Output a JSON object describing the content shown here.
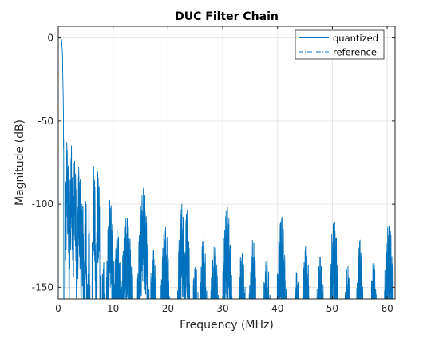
{
  "chart_data": {
    "type": "line",
    "title": "DUC Filter Chain",
    "xlabel": "Frequency (MHz)",
    "ylabel": "Magnitude (dB)",
    "xlim": [
      0,
      61.44
    ],
    "ylim": [
      -157,
      7
    ],
    "xticks": [
      0,
      10,
      20,
      30,
      40,
      50,
      60
    ],
    "yticks": [
      0,
      -50,
      -100,
      -150
    ],
    "xtick_labels": [
      "0",
      "10",
      "20",
      "30",
      "40",
      "50",
      "60"
    ],
    "ytick_labels": [
      "0",
      "-50",
      "-100",
      "-150"
    ],
    "grid": true,
    "legend_position": "top-right",
    "series_color": "#0072BD",
    "series": [
      {
        "name": "quantized",
        "style": "solid",
        "passband": {
          "x": [
            0,
            0.2,
            0.4,
            0.6,
            0.75,
            0.9,
            1.0
          ],
          "y": [
            0,
            0,
            0,
            -1,
            -8,
            -35,
            -60
          ]
        },
        "lobes": [
          {
            "center": 1.6,
            "width": 0.9,
            "peak": -60
          },
          {
            "center": 2.4,
            "width": 0.9,
            "peak": -64
          },
          {
            "center": 3.0,
            "width": 0.8,
            "peak": -68
          },
          {
            "center": 3.8,
            "width": 1.0,
            "peak": -75
          },
          {
            "center": 4.4,
            "width": 0.6,
            "peak": -89
          },
          {
            "center": 5.0,
            "width": 0.6,
            "peak": -93
          },
          {
            "center": 5.6,
            "width": 0.5,
            "peak": -98
          },
          {
            "center": 6.5,
            "width": 0.7,
            "peak": -72
          },
          {
            "center": 7.3,
            "width": 0.8,
            "peak": -76
          },
          {
            "center": 8.2,
            "width": 0.8,
            "peak": -128
          },
          {
            "center": 9.5,
            "width": 1.6,
            "peak": -95
          },
          {
            "center": 10.8,
            "width": 1.6,
            "peak": -114
          },
          {
            "center": 12.5,
            "width": 2.4,
            "peak": -105
          },
          {
            "center": 15.5,
            "width": 2.2,
            "peak": -90
          },
          {
            "center": 17.3,
            "width": 1.5,
            "peak": -123
          },
          {
            "center": 19.5,
            "width": 2.0,
            "peak": -112
          },
          {
            "center": 22.5,
            "width": 1.6,
            "peak": -98
          },
          {
            "center": 23.5,
            "width": 1.2,
            "peak": -99
          },
          {
            "center": 25.0,
            "width": 1.8,
            "peak": -135
          },
          {
            "center": 26.5,
            "width": 1.6,
            "peak": -118
          },
          {
            "center": 28.5,
            "width": 2.0,
            "peak": -123
          },
          {
            "center": 30.8,
            "width": 2.0,
            "peak": -101
          },
          {
            "center": 33.5,
            "width": 2.0,
            "peak": -127
          },
          {
            "center": 35.5,
            "width": 1.8,
            "peak": -120
          },
          {
            "center": 38.0,
            "width": 2.0,
            "peak": -132
          },
          {
            "center": 40.7,
            "width": 2.0,
            "peak": -106
          },
          {
            "center": 43.5,
            "width": 1.6,
            "peak": -138
          },
          {
            "center": 45.2,
            "width": 1.8,
            "peak": -123
          },
          {
            "center": 47.8,
            "width": 2.0,
            "peak": -130
          },
          {
            "center": 50.3,
            "width": 2.0,
            "peak": -108
          },
          {
            "center": 52.8,
            "width": 1.8,
            "peak": -136
          },
          {
            "center": 55.0,
            "width": 1.6,
            "peak": -120
          },
          {
            "center": 57.5,
            "width": 1.8,
            "peak": -133
          },
          {
            "center": 60.3,
            "width": 2.0,
            "peak": -109
          }
        ]
      },
      {
        "name": "reference",
        "style": "dash-dot"
      }
    ]
  }
}
